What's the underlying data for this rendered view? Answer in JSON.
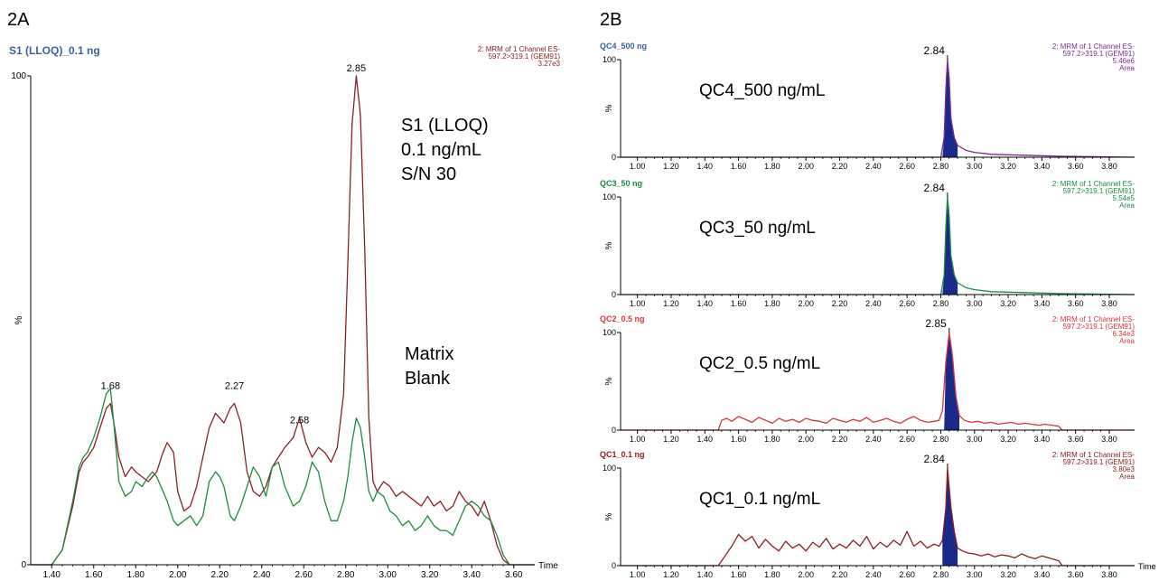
{
  "panel_labels": {
    "a": "2A",
    "b": "2B"
  },
  "annotations": {
    "a_main": [
      "S1 (LLOQ)",
      "0.1 ng/mL",
      "S/N 30"
    ],
    "a_blank": [
      "Matrix",
      "Blank"
    ]
  },
  "colors": {
    "axis": "#000000",
    "sample_red": "#8a1f24",
    "blank_green": "#1e8a3c",
    "qc4_purple": "#7a2a8e",
    "qc3_green": "#1a8a44",
    "qc2_red": "#d8343a",
    "qc1_darkred": "#8b1d21",
    "peak_fill": "#1a2a8a",
    "title_blue": "#3a5fa0"
  },
  "chart_data": [
    {
      "type": "line",
      "title": "S1 (LLOQ)_0.1 ng",
      "title_color": "#3a5fa0",
      "xlabel": "Time",
      "ylabel": "%",
      "xlim": [
        1.3,
        3.7
      ],
      "ylim": [
        0,
        100
      ],
      "xticks": [
        "1.40",
        "1.60",
        "1.80",
        "2.00",
        "2.20",
        "2.40",
        "2.60",
        "2.80",
        "3.00",
        "3.20",
        "3.40",
        "3.60"
      ],
      "ytick_labels": [
        "0",
        "100"
      ],
      "info": [
        "2: MRM of 1 Channel ES-",
        "597.2>319.1 (GEM91)",
        "3.27e3"
      ],
      "info_color": "#8a1f24",
      "peak_labels": [
        {
          "label": "1.68",
          "x": 1.68,
          "y": 35
        },
        {
          "label": "2.27",
          "x": 2.27,
          "y": 35
        },
        {
          "label": "2.58",
          "x": 2.58,
          "y": 28
        },
        {
          "label": "2.85",
          "x": 2.85,
          "y": 100
        }
      ],
      "series": [
        {
          "name": "S1 (LLOQ)",
          "color": "#8a1f24",
          "x": [
            1.3,
            1.35,
            1.4,
            1.45,
            1.5,
            1.53,
            1.55,
            1.57,
            1.6,
            1.63,
            1.66,
            1.68,
            1.7,
            1.72,
            1.75,
            1.78,
            1.8,
            1.83,
            1.86,
            1.88,
            1.9,
            1.93,
            1.95,
            1.98,
            2.0,
            2.03,
            2.06,
            2.09,
            2.12,
            2.15,
            2.18,
            2.2,
            2.22,
            2.25,
            2.27,
            2.3,
            2.33,
            2.36,
            2.39,
            2.42,
            2.45,
            2.48,
            2.51,
            2.55,
            2.58,
            2.61,
            2.64,
            2.67,
            2.7,
            2.73,
            2.76,
            2.79,
            2.81,
            2.83,
            2.85,
            2.87,
            2.89,
            2.91,
            2.93,
            2.95,
            2.98,
            3.01,
            3.04,
            3.07,
            3.1,
            3.13,
            3.16,
            3.19,
            3.22,
            3.25,
            3.28,
            3.31,
            3.34,
            3.37,
            3.4,
            3.43,
            3.46,
            3.49,
            3.52,
            3.55,
            3.58,
            3.62,
            3.66,
            3.7
          ],
          "y": [
            0,
            0,
            0,
            3,
            12,
            19,
            21,
            22,
            24,
            28,
            32,
            33,
            28,
            22,
            18,
            20,
            19,
            18,
            17,
            18,
            19,
            23,
            25,
            23,
            15,
            11,
            12,
            16,
            22,
            28,
            31,
            30,
            29,
            32,
            33,
            29,
            19,
            15,
            14,
            16,
            20,
            22,
            24,
            26,
            30,
            25,
            22,
            24,
            23,
            21,
            24,
            35,
            62,
            90,
            100,
            92,
            65,
            30,
            17,
            15,
            17,
            16,
            14,
            15,
            14,
            13,
            12,
            14,
            12,
            13,
            11,
            12,
            15,
            13,
            12,
            10,
            13,
            9,
            4,
            1,
            0,
            0,
            0,
            0
          ]
        },
        {
          "name": "Matrix Blank",
          "color": "#1e8a3c",
          "x": [
            1.3,
            1.35,
            1.4,
            1.45,
            1.5,
            1.53,
            1.55,
            1.57,
            1.6,
            1.63,
            1.66,
            1.68,
            1.7,
            1.72,
            1.75,
            1.78,
            1.8,
            1.83,
            1.86,
            1.88,
            1.9,
            1.93,
            1.95,
            1.98,
            2.0,
            2.03,
            2.06,
            2.09,
            2.12,
            2.15,
            2.18,
            2.2,
            2.22,
            2.25,
            2.27,
            2.3,
            2.33,
            2.36,
            2.39,
            2.42,
            2.45,
            2.48,
            2.51,
            2.55,
            2.58,
            2.61,
            2.64,
            2.67,
            2.7,
            2.73,
            2.76,
            2.79,
            2.81,
            2.83,
            2.85,
            2.87,
            2.89,
            2.91,
            2.93,
            2.95,
            2.98,
            3.01,
            3.04,
            3.07,
            3.1,
            3.13,
            3.16,
            3.19,
            3.22,
            3.25,
            3.28,
            3.31,
            3.34,
            3.37,
            3.4,
            3.43,
            3.46,
            3.49,
            3.52,
            3.55,
            3.58,
            3.62,
            3.66,
            3.7
          ],
          "y": [
            0,
            0,
            0,
            3,
            13,
            20,
            22,
            23,
            26,
            30,
            35,
            36,
            27,
            17,
            14,
            15,
            17,
            16,
            18,
            19,
            18,
            15,
            13,
            9,
            8,
            9,
            10,
            8,
            10,
            17,
            19,
            18,
            16,
            10,
            9,
            12,
            16,
            20,
            18,
            14,
            20,
            21,
            16,
            12,
            13,
            16,
            21,
            19,
            13,
            9,
            9,
            13,
            18,
            25,
            30,
            28,
            22,
            15,
            13,
            15,
            14,
            11,
            10,
            8,
            9,
            7,
            8,
            10,
            8,
            7,
            7,
            6,
            9,
            12,
            13,
            12,
            10,
            9,
            6,
            2,
            0,
            0,
            0,
            0
          ]
        }
      ]
    },
    {
      "type": "line",
      "title": "QC4_500 ng",
      "title_color": "#3a5fa0",
      "label": "QC4_500 ng/mL",
      "xlabel": "",
      "ylabel": "%",
      "xlim": [
        0.9,
        3.95
      ],
      "ylim": [
        0,
        100
      ],
      "xticks": [
        "1.00",
        "1.20",
        "1.40",
        "1.60",
        "1.80",
        "2.00",
        "2.20",
        "2.40",
        "2.60",
        "2.80",
        "3.00",
        "3.20",
        "3.40",
        "3.60",
        "3.80"
      ],
      "ytick_labels": [
        "0",
        "100"
      ],
      "info": [
        "2: MRM of 1 Channel ES-",
        "597.2>319.1 (GEM91)",
        "5.46e6",
        "Area"
      ],
      "info_color": "#7a2a8e",
      "peak_labels": [
        {
          "label": "2.84",
          "x": 2.84,
          "y": 100
        }
      ],
      "series": [
        {
          "name": "",
          "color": "#7a2a8e",
          "x": [
            0.9,
            2.75,
            2.8,
            2.82,
            2.83,
            2.84,
            2.85,
            2.86,
            2.88,
            2.9,
            2.95,
            3.0,
            3.1,
            3.3,
            3.5,
            3.95
          ],
          "y": [
            0,
            0,
            0,
            20,
            70,
            100,
            80,
            40,
            20,
            12,
            7,
            5,
            3,
            2,
            1,
            0
          ]
        }
      ]
    },
    {
      "type": "line",
      "title": "QC3_50 ng",
      "title_color": "#1a8a44",
      "label": "QC3_50 ng/mL",
      "xlabel": "",
      "ylabel": "%",
      "xlim": [
        0.9,
        3.95
      ],
      "ylim": [
        0,
        100
      ],
      "xticks": [
        "1.00",
        "1.20",
        "1.40",
        "1.60",
        "1.80",
        "2.00",
        "2.20",
        "2.40",
        "2.60",
        "2.80",
        "3.00",
        "3.20",
        "3.40",
        "3.60",
        "3.80"
      ],
      "ytick_labels": [
        "0",
        "100"
      ],
      "info": [
        "2: MRM of 1 Channel ES-",
        "597.2>319.1 (GEM91)",
        "5.54e5",
        "Area"
      ],
      "info_color": "#1a8a44",
      "peak_labels": [
        {
          "label": "2.84",
          "x": 2.84,
          "y": 100
        }
      ],
      "series": [
        {
          "name": "",
          "color": "#1a8a44",
          "x": [
            0.9,
            2.75,
            2.8,
            2.82,
            2.83,
            2.84,
            2.85,
            2.86,
            2.88,
            2.9,
            2.95,
            3.0,
            3.1,
            3.3,
            3.5,
            3.95
          ],
          "y": [
            0,
            0,
            0,
            20,
            70,
            100,
            80,
            40,
            20,
            12,
            7,
            5,
            3,
            2,
            1,
            0
          ]
        }
      ]
    },
    {
      "type": "line",
      "title": "QC2_0.5 ng",
      "title_color": "#d8343a",
      "label": "QC2_0.5 ng/mL",
      "xlabel": "",
      "ylabel": "%",
      "xlim": [
        0.9,
        3.95
      ],
      "ylim": [
        0,
        100
      ],
      "xticks": [
        "1.00",
        "1.20",
        "1.40",
        "1.60",
        "1.80",
        "2.00",
        "2.20",
        "2.40",
        "2.60",
        "2.80",
        "3.00",
        "3.20",
        "3.40",
        "3.60",
        "3.80"
      ],
      "ytick_labels": [
        "0",
        "100"
      ],
      "info": [
        "2: MRM of 1 Channel ES-",
        "597.2>319.1 (GEM91)",
        "6.34e3",
        "Area"
      ],
      "info_color": "#d8343a",
      "peak_labels": [
        {
          "label": "2.85",
          "x": 2.85,
          "y": 100
        }
      ],
      "series": [
        {
          "name": "",
          "color": "#d8343a",
          "x": [
            0.9,
            1.48,
            1.5,
            1.53,
            1.56,
            1.6,
            1.64,
            1.68,
            1.72,
            1.76,
            1.8,
            1.84,
            1.88,
            1.92,
            1.96,
            2.0,
            2.04,
            2.08,
            2.12,
            2.16,
            2.2,
            2.24,
            2.28,
            2.32,
            2.36,
            2.4,
            2.44,
            2.48,
            2.52,
            2.56,
            2.6,
            2.64,
            2.68,
            2.72,
            2.76,
            2.79,
            2.81,
            2.83,
            2.85,
            2.87,
            2.89,
            2.91,
            2.94,
            2.98,
            3.02,
            3.06,
            3.1,
            3.14,
            3.18,
            3.22,
            3.26,
            3.3,
            3.34,
            3.38,
            3.42,
            3.46,
            3.5,
            3.52,
            3.95
          ],
          "y": [
            0,
            0,
            10,
            12,
            9,
            14,
            11,
            8,
            13,
            10,
            7,
            12,
            9,
            11,
            8,
            12,
            10,
            9,
            7,
            12,
            10,
            8,
            11,
            9,
            13,
            8,
            10,
            12,
            9,
            7,
            11,
            14,
            10,
            8,
            9,
            10,
            20,
            70,
            100,
            75,
            35,
            15,
            10,
            8,
            9,
            7,
            8,
            6,
            7,
            8,
            6,
            7,
            6,
            5,
            6,
            5,
            4,
            0,
            0
          ]
        }
      ]
    },
    {
      "type": "line",
      "title": "QC1_0.1 ng",
      "title_color": "#8b1d21",
      "label": "QC1_0.1 ng/mL",
      "xlabel": "Time",
      "ylabel": "%",
      "xlim": [
        0.9,
        3.95
      ],
      "ylim": [
        0,
        100
      ],
      "xticks": [
        "1.00",
        "1.20",
        "1.40",
        "1.60",
        "1.80",
        "2.00",
        "2.20",
        "2.40",
        "2.60",
        "2.80",
        "3.00",
        "3.20",
        "3.40",
        "3.60",
        "3.80"
      ],
      "ytick_labels": [
        "0",
        "100"
      ],
      "info": [
        "2: MRM of 1 Channel ES-",
        "597.2>319.1 (GEM91)",
        "3.80e3",
        "Area"
      ],
      "info_color": "#8b1d21",
      "peak_labels": [
        {
          "label": "2.84",
          "x": 2.84,
          "y": 100
        }
      ],
      "series": [
        {
          "name": "",
          "color": "#8b1d21",
          "x": [
            0.9,
            1.48,
            1.52,
            1.56,
            1.6,
            1.64,
            1.68,
            1.72,
            1.76,
            1.8,
            1.84,
            1.88,
            1.92,
            1.96,
            2.0,
            2.04,
            2.08,
            2.12,
            2.16,
            2.2,
            2.24,
            2.28,
            2.32,
            2.36,
            2.4,
            2.44,
            2.48,
            2.52,
            2.56,
            2.6,
            2.64,
            2.68,
            2.72,
            2.76,
            2.79,
            2.81,
            2.83,
            2.84,
            2.86,
            2.88,
            2.9,
            2.93,
            2.96,
            3.0,
            3.04,
            3.08,
            3.12,
            3.16,
            3.2,
            3.24,
            3.28,
            3.32,
            3.36,
            3.4,
            3.44,
            3.48,
            3.5,
            3.52,
            3.95
          ],
          "y": [
            0,
            0,
            10,
            20,
            32,
            25,
            30,
            18,
            27,
            20,
            15,
            25,
            18,
            22,
            15,
            24,
            19,
            28,
            17,
            22,
            18,
            26,
            20,
            30,
            17,
            24,
            19,
            26,
            21,
            35,
            20,
            25,
            18,
            22,
            20,
            26,
            60,
            100,
            60,
            35,
            18,
            15,
            13,
            12,
            10,
            12,
            9,
            11,
            10,
            8,
            12,
            9,
            7,
            10,
            8,
            6,
            5,
            0,
            0
          ]
        }
      ]
    }
  ]
}
